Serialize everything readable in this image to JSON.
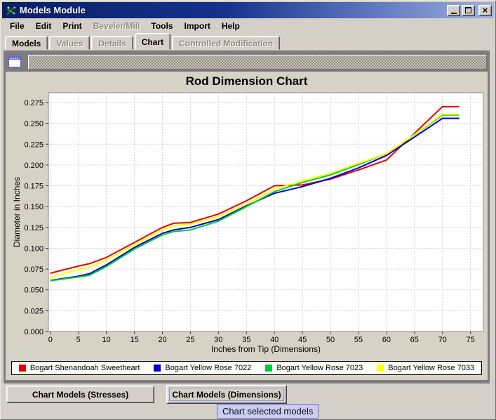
{
  "window": {
    "title": "Models Module",
    "close_glyph": "×"
  },
  "menu": {
    "items": [
      {
        "label": "File",
        "enabled": true
      },
      {
        "label": "Edit",
        "enabled": true
      },
      {
        "label": "Print",
        "enabled": true
      },
      {
        "label": "Beveler/Mill",
        "enabled": false
      },
      {
        "label": "Tools",
        "enabled": true
      },
      {
        "label": "Import",
        "enabled": true
      },
      {
        "label": "Help",
        "enabled": true
      }
    ]
  },
  "tabs": {
    "items": [
      {
        "label": "Models",
        "state": "enabled"
      },
      {
        "label": "Values",
        "state": "disabled"
      },
      {
        "label": "Details",
        "state": "disabled"
      },
      {
        "label": "Chart",
        "state": "selected"
      },
      {
        "label": "Controlled Modification",
        "state": "disabled"
      }
    ]
  },
  "chart_data": {
    "type": "line",
    "title": "Rod Dimension Chart",
    "xlabel": "Inches from Tip (Dimensions)",
    "ylabel": "Diameter in Inches",
    "xlim": [
      -0.35,
      77.3
    ],
    "ylim": [
      0,
      0.2868
    ],
    "xticks": [
      0,
      5,
      10,
      15,
      20,
      25,
      30,
      35,
      40,
      45,
      50,
      55,
      60,
      65,
      70,
      75
    ],
    "yticks": [
      0.0,
      0.025,
      0.05,
      0.075,
      0.1,
      0.125,
      0.15,
      0.175,
      0.2,
      0.225,
      0.25,
      0.275
    ],
    "grid": true,
    "legend_position": "bottom",
    "x": [
      0,
      5,
      7,
      10,
      15,
      20,
      22,
      25,
      30,
      35,
      40,
      45,
      50,
      55,
      60,
      65,
      70,
      73
    ],
    "series": [
      {
        "name": "Bogart Shenandoah Sweetheart",
        "color": "#e60000",
        "values": [
          0.07,
          0.0785,
          0.0815,
          0.089,
          0.107,
          0.125,
          0.13,
          0.131,
          0.141,
          0.157,
          0.175,
          0.176,
          0.183,
          0.194,
          0.206,
          0.238,
          0.27,
          0.27
        ]
      },
      {
        "name": "Bogart Yellow Rose 7022",
        "color": "#0000cc",
        "values": [
          0.0612,
          0.0665,
          0.0695,
          0.08,
          0.101,
          0.118,
          0.122,
          0.125,
          0.1345,
          0.151,
          0.166,
          0.174,
          0.184,
          0.1965,
          0.2115,
          0.2335,
          0.256,
          0.256
        ]
      },
      {
        "name": "Bogart Yellow Rose 7023",
        "color": "#00cc33",
        "values": [
          0.061,
          0.0655,
          0.0675,
          0.078,
          0.099,
          0.116,
          0.12,
          0.122,
          0.1325,
          0.15,
          0.168,
          0.179,
          0.188,
          0.2005,
          0.2135,
          0.236,
          0.26,
          0.26
        ]
      },
      {
        "name": "Bogart Yellow Rose 7033",
        "color": "#ffff00",
        "values": [
          0.065,
          0.0745,
          0.077,
          0.0855,
          0.104,
          0.122,
          0.127,
          0.129,
          0.138,
          0.153,
          0.171,
          0.181,
          0.19,
          0.202,
          0.2135,
          0.2365,
          0.261,
          0.261
        ]
      }
    ]
  },
  "buttons": {
    "stresses": "Chart Models (Stresses)",
    "dimensions": "Chart Models (Dimensions)"
  },
  "tooltip": "Chart selected models"
}
